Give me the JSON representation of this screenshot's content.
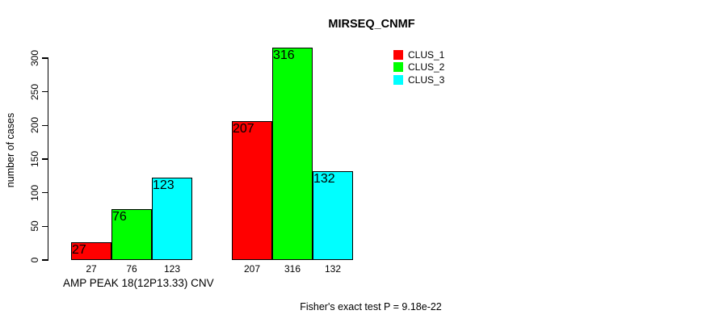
{
  "chart_data": {
    "type": "bar",
    "title": "MIRSEQ_CNMF",
    "ylabel": "number of cases",
    "xlabel": "AMP PEAK 18(12P13.33) CNV",
    "annotation": "Fisher's exact test P = 9.18e-22",
    "ylim": [
      0,
      300
    ],
    "yticks": [
      0,
      50,
      100,
      150,
      200,
      250,
      300
    ],
    "grid": false,
    "legend_position": "top-right",
    "group_count": 2,
    "series": [
      {
        "name": "CLUS_1",
        "color": "#ff0000",
        "values": [
          27,
          207
        ]
      },
      {
        "name": "CLUS_2",
        "color": "#00ff00",
        "values": [
          76,
          316
        ]
      },
      {
        "name": "CLUS_3",
        "color": "#00ffff",
        "values": [
          123,
          132
        ]
      }
    ],
    "bar_value_labels": [
      [
        "27",
        "76",
        "123"
      ],
      [
        "207",
        "316",
        "132"
      ]
    ]
  }
}
